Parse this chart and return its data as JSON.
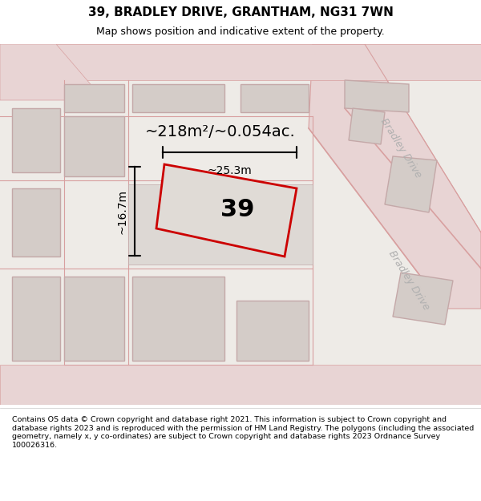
{
  "title": "39, BRADLEY DRIVE, GRANTHAM, NG31 7WN",
  "subtitle": "Map shows position and indicative extent of the property.",
  "footer": "Contains OS data © Crown copyright and database right 2021. This information is subject to Crown copyright and database rights 2023 and is reproduced with the permission of HM Land Registry. The polygons (including the associated geometry, namely x, y co-ordinates) are subject to Crown copyright and database rights 2023 Ordnance Survey 100026316.",
  "area_label": "~218m²/~0.054ac.",
  "property_number": "39",
  "dim_width": "~25.3m",
  "dim_height": "~16.7m",
  "street_label_top": "Bradley Drive",
  "street_label_bottom": "Bradley Drive",
  "map_bg": "#eeebe7",
  "plot_color": "#cc0000",
  "road_fill": "#e8d4d4",
  "road_line": "#d8a0a0",
  "building_fill": "#d4ccc8",
  "building_edge": "#c4a8a8"
}
